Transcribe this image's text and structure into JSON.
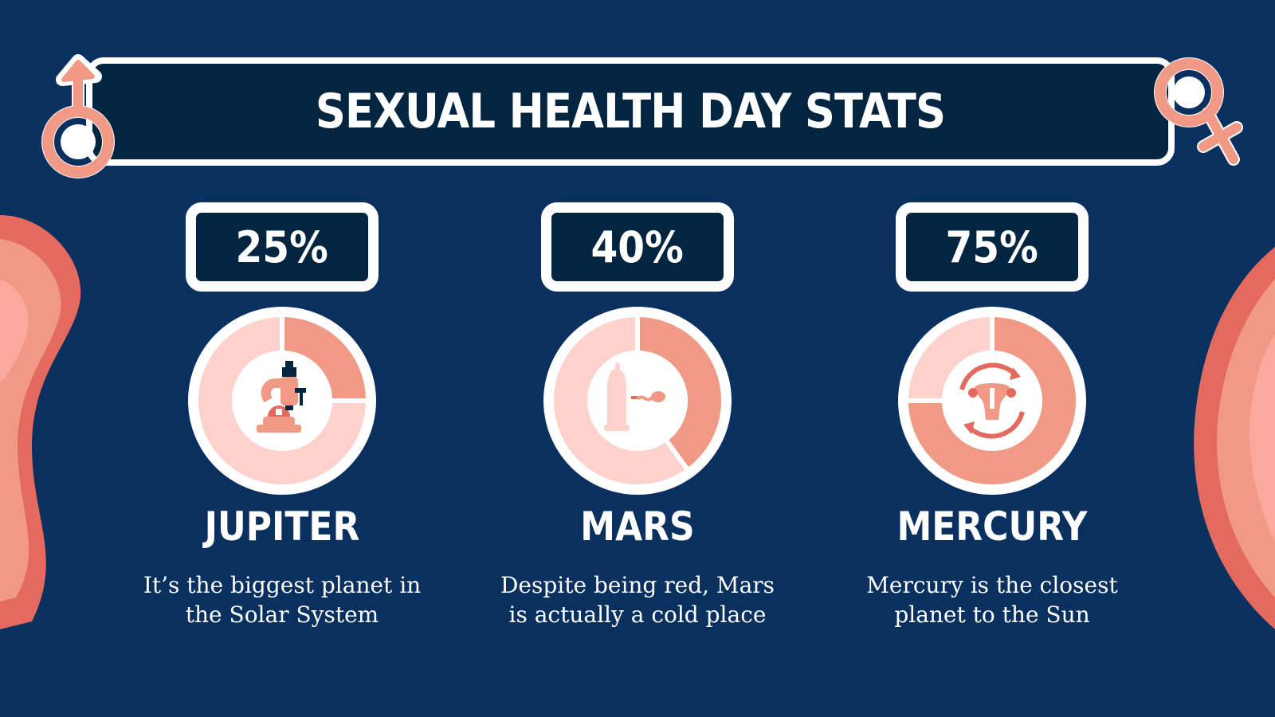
{
  "title": "SEXUAL HEALTH DAY STATS",
  "colors": {
    "background": "#0a3060",
    "panel": "#04253f",
    "white": "#ffffff",
    "ring_fill": "#f09a86",
    "ring_track": "#fdd1cc",
    "icon": "#e46a5f"
  },
  "stats": [
    {
      "value": "25%",
      "percent": 25,
      "name": "JUPITER",
      "description_line1": "It’s the biggest planet in",
      "description_line2": "the Solar System",
      "icon": "microscope-icon"
    },
    {
      "value": "40%",
      "percent": 40,
      "name": "MARS",
      "description_line1": "Despite being red, Mars",
      "description_line2": "is actually a cold place",
      "icon": "condom-sperm-icon"
    },
    {
      "value": "75%",
      "percent": 75,
      "name": "MERCURY",
      "description_line1": "Mercury is the closest",
      "description_line2": "planet to the Sun",
      "icon": "uterus-cycle-icon"
    }
  ]
}
